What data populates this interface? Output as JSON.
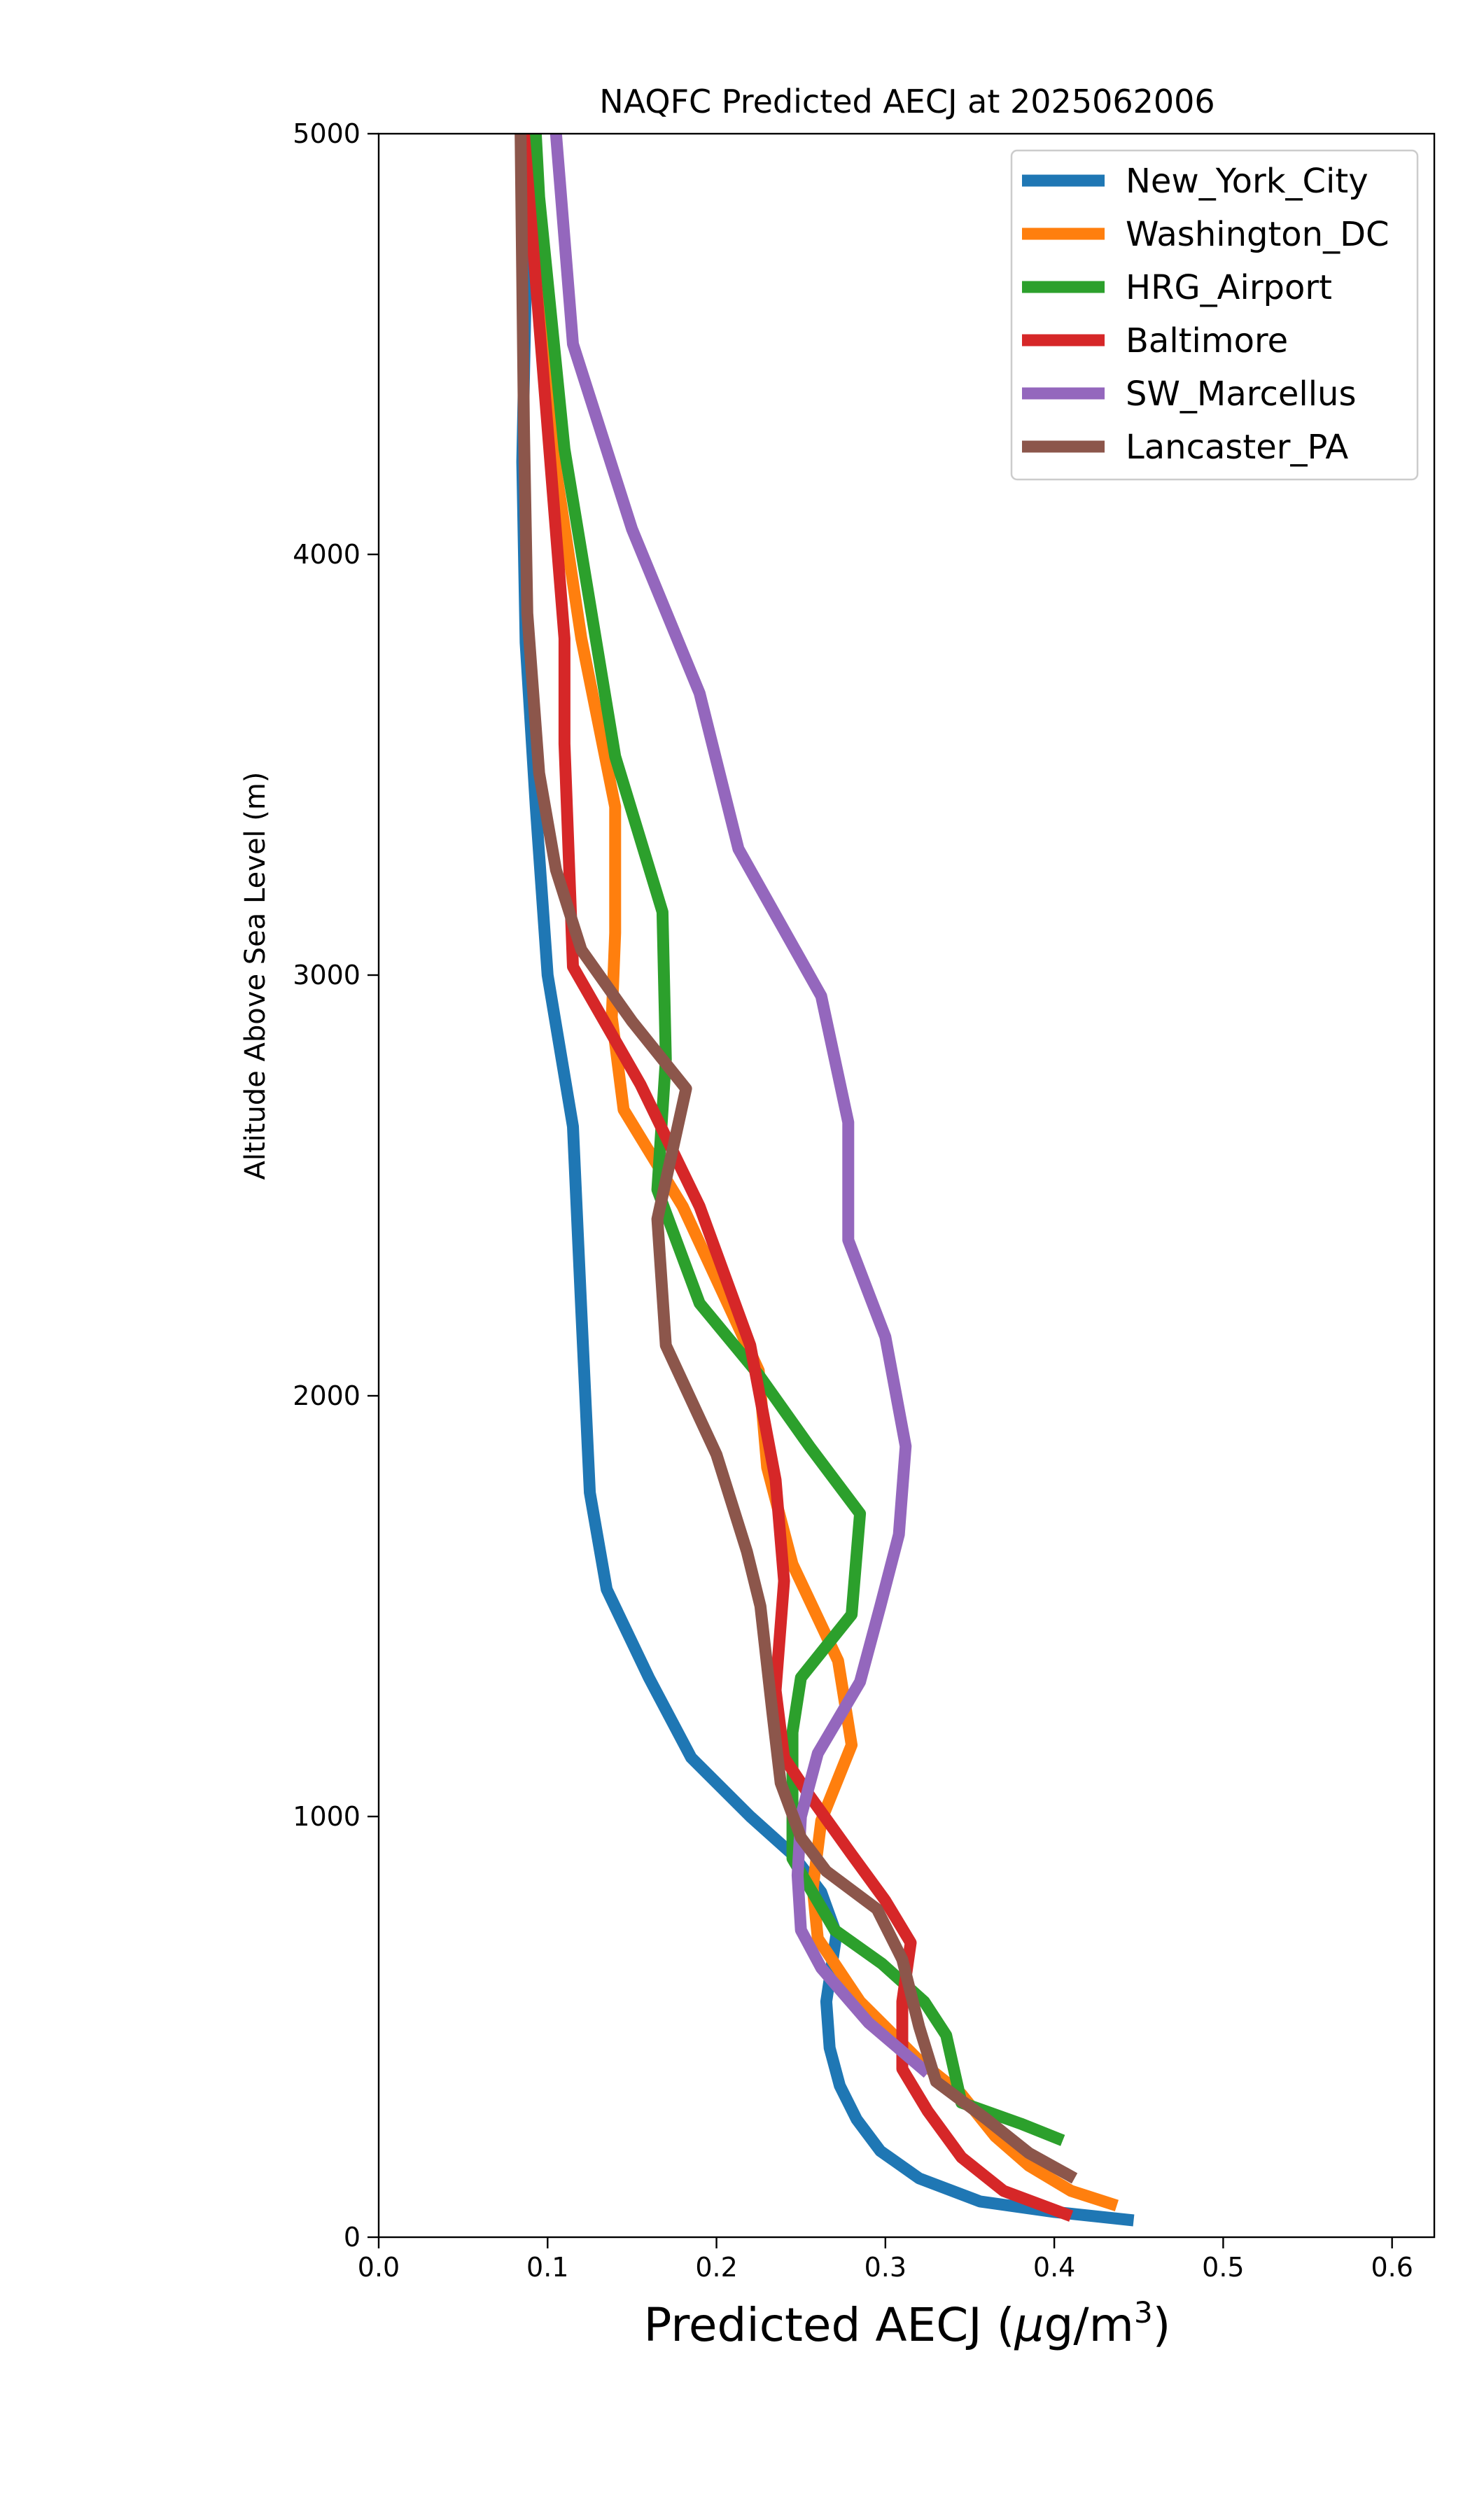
{
  "chart_data": {
    "type": "line",
    "title": "NAQFC Predicted AECJ at 2025062006",
    "xlabel_main": "Predicted AECJ (",
    "xlabel_mu": "μ",
    "xlabel_unit": "g/m",
    "xlabel_sup": "3",
    "xlabel_close": ")",
    "ylabel": "Altitude Above Sea Level (m)",
    "xlim": [
      0.0,
      0.625
    ],
    "ylim": [
      0,
      5000
    ],
    "xticks": [
      {
        "value": 0.0,
        "label": "0.0"
      },
      {
        "value": 0.1,
        "label": "0.1"
      },
      {
        "value": 0.2,
        "label": "0.2"
      },
      {
        "value": 0.3,
        "label": "0.3"
      },
      {
        "value": 0.4,
        "label": "0.4"
      },
      {
        "value": 0.5,
        "label": "0.5"
      },
      {
        "value": 0.6,
        "label": "0.6"
      }
    ],
    "yticks": [
      {
        "value": 0,
        "label": "0"
      },
      {
        "value": 1000,
        "label": "1000"
      },
      {
        "value": 2000,
        "label": "2000"
      },
      {
        "value": 3000,
        "label": "3000"
      },
      {
        "value": 4000,
        "label": "4000"
      },
      {
        "value": 5000,
        "label": "5000"
      }
    ],
    "grid": false,
    "legend_position": "top-right",
    "series": [
      {
        "name": "New_York_City",
        "color": "#1f77b4",
        "points": [
          [
            0.447,
            40
          ],
          [
            0.4,
            60
          ],
          [
            0.356,
            85
          ],
          [
            0.32,
            140
          ],
          [
            0.297,
            205
          ],
          [
            0.283,
            280
          ],
          [
            0.273,
            360
          ],
          [
            0.267,
            450
          ],
          [
            0.265,
            560
          ],
          [
            0.268,
            640
          ],
          [
            0.271,
            720
          ],
          [
            0.262,
            820
          ],
          [
            0.245,
            910
          ],
          [
            0.22,
            1000
          ],
          [
            0.185,
            1140
          ],
          [
            0.16,
            1330
          ],
          [
            0.135,
            1540
          ],
          [
            0.125,
            1770
          ],
          [
            0.12,
            2200
          ],
          [
            0.115,
            2640
          ],
          [
            0.1,
            3000
          ],
          [
            0.093,
            3400
          ],
          [
            0.087,
            3790
          ],
          [
            0.085,
            4220
          ],
          [
            0.087,
            4620
          ],
          [
            0.09,
            5000
          ]
        ]
      },
      {
        "name": "Washington_DC",
        "color": "#ff7f0e",
        "points": [
          [
            0.437,
            75
          ],
          [
            0.41,
            110
          ],
          [
            0.385,
            170
          ],
          [
            0.365,
            240
          ],
          [
            0.345,
            340
          ],
          [
            0.32,
            420
          ],
          [
            0.285,
            560
          ],
          [
            0.26,
            710
          ],
          [
            0.257,
            830
          ],
          [
            0.262,
            990
          ],
          [
            0.28,
            1170
          ],
          [
            0.272,
            1370
          ],
          [
            0.245,
            1600
          ],
          [
            0.23,
            1830
          ],
          [
            0.225,
            2060
          ],
          [
            0.18,
            2450
          ],
          [
            0.145,
            2680
          ],
          [
            0.138,
            2900
          ],
          [
            0.14,
            3100
          ],
          [
            0.14,
            3400
          ],
          [
            0.12,
            3800
          ],
          [
            0.105,
            4200
          ],
          [
            0.095,
            4600
          ],
          [
            0.09,
            5000
          ]
        ]
      },
      {
        "name": "HRG_Airport",
        "color": "#2ca02c",
        "points": [
          [
            0.405,
            230
          ],
          [
            0.38,
            270
          ],
          [
            0.345,
            320
          ],
          [
            0.336,
            480
          ],
          [
            0.323,
            560
          ],
          [
            0.298,
            650
          ],
          [
            0.27,
            730
          ],
          [
            0.245,
            900
          ],
          [
            0.245,
            1200
          ],
          [
            0.25,
            1330
          ],
          [
            0.28,
            1480
          ],
          [
            0.285,
            1720
          ],
          [
            0.255,
            1880
          ],
          [
            0.225,
            2050
          ],
          [
            0.19,
            2220
          ],
          [
            0.165,
            2490
          ],
          [
            0.17,
            2800
          ],
          [
            0.168,
            3150
          ],
          [
            0.14,
            3520
          ],
          [
            0.11,
            4250
          ],
          [
            0.095,
            4850
          ],
          [
            0.093,
            5000
          ]
        ]
      },
      {
        "name": "Baltimore",
        "color": "#d62728",
        "points": [
          [
            0.41,
            50
          ],
          [
            0.37,
            110
          ],
          [
            0.345,
            190
          ],
          [
            0.325,
            300
          ],
          [
            0.31,
            400
          ],
          [
            0.31,
            560
          ],
          [
            0.315,
            700
          ],
          [
            0.3,
            800
          ],
          [
            0.28,
            910
          ],
          [
            0.255,
            1050
          ],
          [
            0.24,
            1140
          ],
          [
            0.235,
            1300
          ],
          [
            0.24,
            1560
          ],
          [
            0.235,
            1800
          ],
          [
            0.22,
            2120
          ],
          [
            0.19,
            2450
          ],
          [
            0.155,
            2740
          ],
          [
            0.115,
            3020
          ],
          [
            0.11,
            3550
          ],
          [
            0.11,
            3800
          ],
          [
            0.098,
            4400
          ],
          [
            0.086,
            5000
          ]
        ]
      },
      {
        "name": "SW_Marcellus",
        "color": "#9467bd",
        "points": [
          [
            0.325,
            390
          ],
          [
            0.29,
            510
          ],
          [
            0.262,
            640
          ],
          [
            0.25,
            730
          ],
          [
            0.248,
            860
          ],
          [
            0.25,
            1000
          ],
          [
            0.26,
            1150
          ],
          [
            0.285,
            1320
          ],
          [
            0.297,
            1500
          ],
          [
            0.308,
            1670
          ],
          [
            0.312,
            1880
          ],
          [
            0.3,
            2140
          ],
          [
            0.278,
            2370
          ],
          [
            0.278,
            2650
          ],
          [
            0.262,
            2950
          ],
          [
            0.213,
            3300
          ],
          [
            0.19,
            3670
          ],
          [
            0.15,
            4060
          ],
          [
            0.115,
            4500
          ],
          [
            0.105,
            5000
          ]
        ]
      },
      {
        "name": "Lancaster_PA",
        "color": "#8c564b",
        "points": [
          [
            0.412,
            140
          ],
          [
            0.385,
            200
          ],
          [
            0.36,
            280
          ],
          [
            0.33,
            370
          ],
          [
            0.32,
            500
          ],
          [
            0.31,
            660
          ],
          [
            0.295,
            780
          ],
          [
            0.265,
            870
          ],
          [
            0.25,
            950
          ],
          [
            0.238,
            1080
          ],
          [
            0.233,
            1250
          ],
          [
            0.226,
            1500
          ],
          [
            0.218,
            1630
          ],
          [
            0.2,
            1860
          ],
          [
            0.17,
            2120
          ],
          [
            0.165,
            2420
          ],
          [
            0.182,
            2730
          ],
          [
            0.15,
            2890
          ],
          [
            0.12,
            3060
          ],
          [
            0.105,
            3250
          ],
          [
            0.095,
            3480
          ],
          [
            0.088,
            3860
          ],
          [
            0.086,
            4300
          ],
          [
            0.084,
            5000
          ]
        ]
      }
    ]
  }
}
